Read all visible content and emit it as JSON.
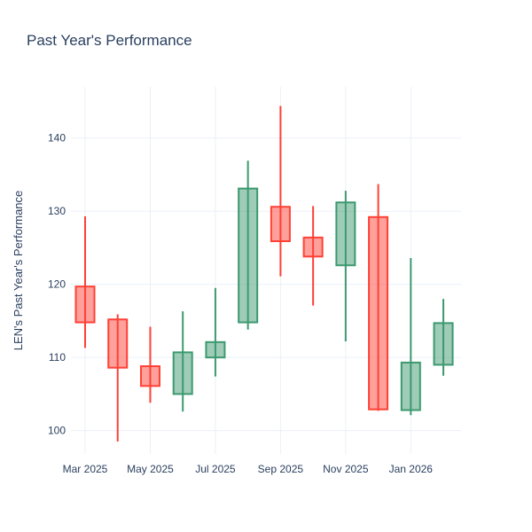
{
  "title": "Past Year's Performance",
  "colors": {
    "text": "#2a3f5f",
    "grid": "#ebf0f8",
    "background": "#ffffff",
    "increasing_line": "#3D9970",
    "increasing_fill": "rgba(61,153,112,0.5)",
    "decreasing_line": "#FF4136",
    "decreasing_fill": "rgba(255,65,54,0.5)"
  },
  "chart_data": {
    "type": "candlestick",
    "title": "Past Year's Performance",
    "ylabel": "LEN's Past Year's Performance",
    "xlabel": "",
    "categories": [
      "Mar 2025",
      "Apr 2025",
      "May 2025",
      "Jun 2025",
      "Jul 2025",
      "Aug 2025",
      "Sep 2025",
      "Oct 2025",
      "Nov 2025",
      "Dec 2025",
      "Jan 2026",
      "Feb 2026"
    ],
    "series": {
      "open": [
        119.7,
        115.2,
        108.8,
        105.0,
        110.0,
        114.8,
        130.6,
        126.4,
        122.6,
        129.2,
        102.8,
        109.0
      ],
      "high": [
        129.3,
        115.9,
        114.2,
        116.3,
        119.5,
        136.9,
        144.4,
        130.7,
        132.8,
        133.7,
        123.6,
        118.0
      ],
      "low": [
        111.3,
        98.5,
        103.8,
        102.6,
        107.4,
        113.8,
        121.1,
        117.1,
        112.2,
        102.7,
        102.1,
        107.5
      ],
      "close": [
        114.8,
        108.6,
        106.1,
        110.7,
        112.1,
        133.1,
        125.9,
        123.8,
        131.2,
        102.9,
        109.3,
        114.7
      ]
    },
    "y_ticks": [
      100,
      110,
      120,
      130,
      140
    ],
    "x_tick_labels": [
      "Mar 2025",
      "May 2025",
      "Jul 2025",
      "Sep 2025",
      "Nov 2025",
      "Jan 2026"
    ],
    "x_tick_indices": [
      0,
      2,
      4,
      6,
      8,
      10
    ],
    "ylim": [
      96.8,
      147.0
    ],
    "grid": true,
    "legend": false
  }
}
